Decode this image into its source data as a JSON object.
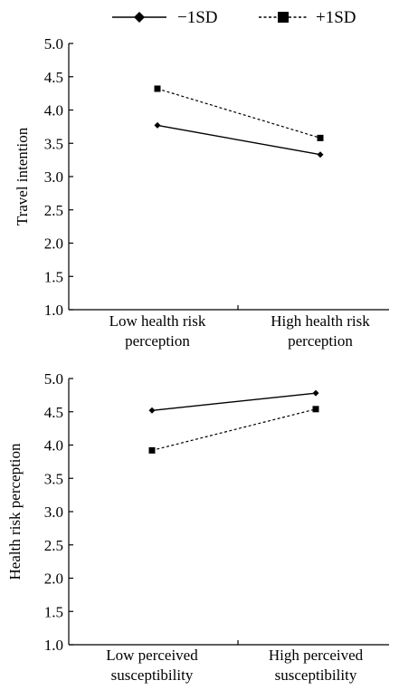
{
  "legend": [
    {
      "name": "−1SD",
      "style": "solid",
      "marker": "diamond"
    },
    {
      "name": "+1SD",
      "style": "dashed",
      "marker": "square"
    }
  ],
  "chart_data": [
    {
      "type": "line",
      "categories": [
        [
          "Low health risk",
          "perception"
        ],
        [
          "High health risk",
          "perception"
        ]
      ],
      "ylabel": "Travel intention",
      "xlabel": "",
      "ylim": [
        1.0,
        5.0
      ],
      "yticks": [
        "1.0",
        "1.5",
        "2.0",
        "2.5",
        "3.0",
        "3.5",
        "4.0",
        "4.5",
        "5.0"
      ],
      "grid": false,
      "series": [
        {
          "name": "−1SD",
          "values": [
            3.77,
            3.33
          ]
        },
        {
          "name": "+1SD",
          "values": [
            4.32,
            3.58
          ]
        }
      ]
    },
    {
      "type": "line",
      "categories": [
        [
          "Low perceived",
          "susceptibility"
        ],
        [
          "High perceived",
          "susceptibility"
        ]
      ],
      "ylabel": "Health risk perception",
      "xlabel": "",
      "ylim": [
        1.0,
        5.0
      ],
      "yticks": [
        "1.0",
        "1.5",
        "2.0",
        "2.5",
        "3.0",
        "3.5",
        "4.0",
        "4.5",
        "5.0"
      ],
      "grid": false,
      "series": [
        {
          "name": "−1SD",
          "values": [
            4.52,
            4.78
          ]
        },
        {
          "name": "+1SD",
          "values": [
            3.92,
            4.54
          ]
        }
      ]
    }
  ]
}
